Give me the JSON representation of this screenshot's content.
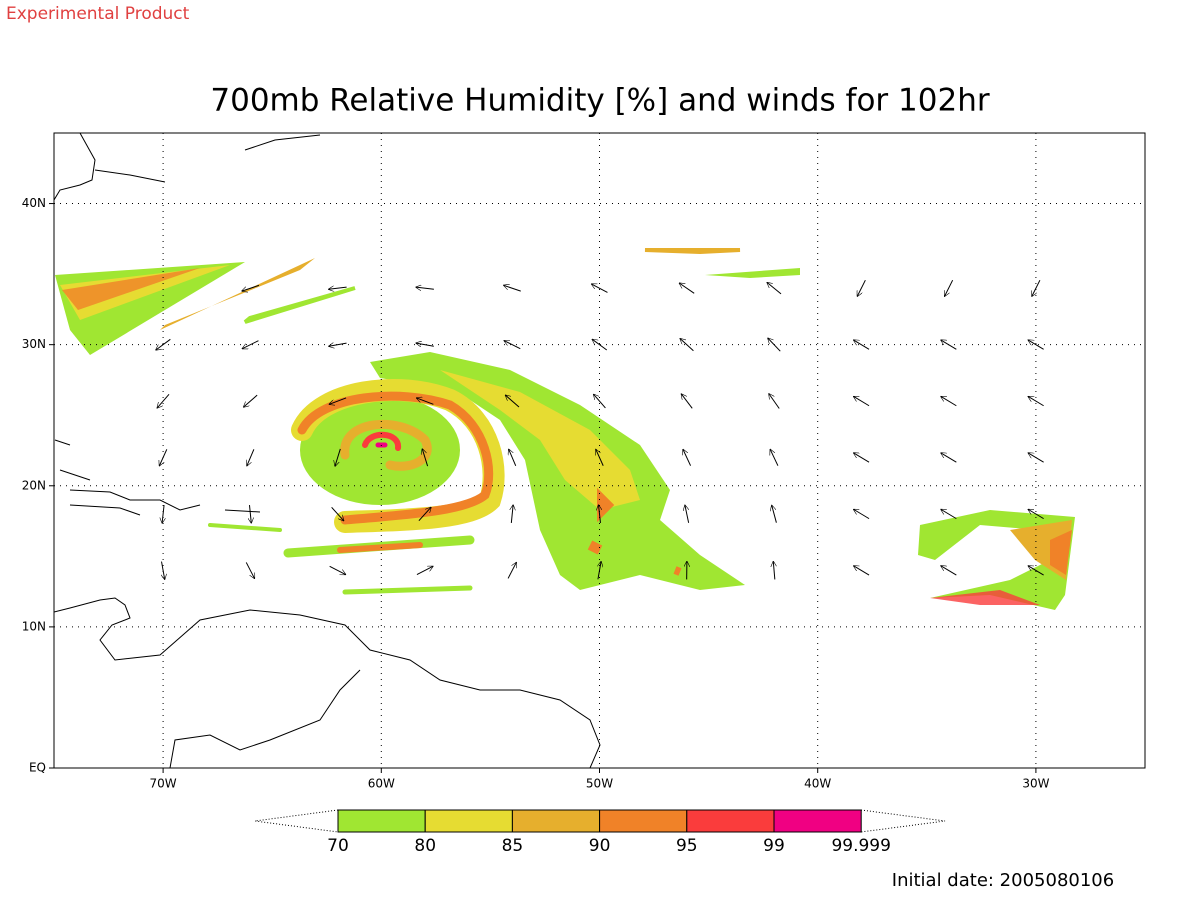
{
  "header": {
    "product": "Experimental Product",
    "title": "700mb Relative Humidity [%] and winds for 102hr"
  },
  "map": {
    "lon_range": [
      -75,
      -25
    ],
    "lat_range": [
      0,
      45
    ],
    "grid": true,
    "lat_ticks": [
      {
        "value": 0,
        "label": "EQ"
      },
      {
        "value": 10,
        "label": "10N"
      },
      {
        "value": 20,
        "label": "20N"
      },
      {
        "value": 30,
        "label": "30N"
      },
      {
        "value": 40,
        "label": "40N"
      }
    ],
    "lon_ticks": [
      {
        "value": -70,
        "label": "70W"
      },
      {
        "value": -60,
        "label": "60W"
      },
      {
        "value": -50,
        "label": "50W"
      },
      {
        "value": -40,
        "label": "40W"
      },
      {
        "value": -30,
        "label": "30W"
      }
    ]
  },
  "colorbar": {
    "levels": [
      70,
      80,
      85,
      90,
      95,
      99,
      99.999
    ],
    "colors": [
      "#a0e632",
      "#e6dc32",
      "#e6af2d",
      "#f08228",
      "#fa3c3c",
      "#f00082"
    ]
  },
  "footer": {
    "initial_date": "Initial date: 2005080106"
  }
}
